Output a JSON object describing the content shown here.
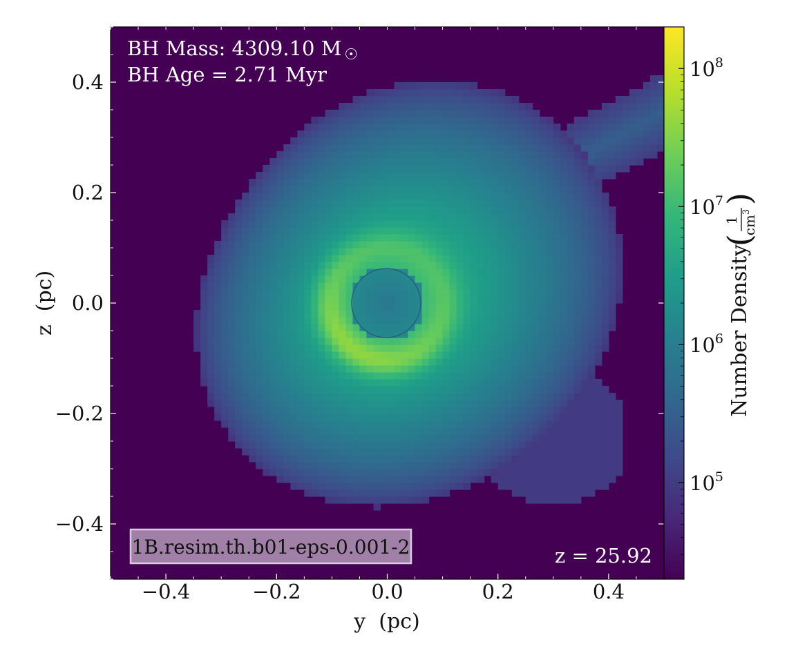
{
  "chart_data": {
    "type": "heatmap",
    "title": "",
    "xlabel": "y  (pc)",
    "ylabel": "z  (pc)",
    "xlim": [
      -0.5,
      0.5
    ],
    "ylim": [
      -0.5,
      0.5
    ],
    "x_ticks": [
      -0.4,
      -0.2,
      0.0,
      0.2,
      0.4
    ],
    "x_tick_labels": [
      "−0.4",
      "−0.2",
      "0.0",
      "0.2",
      "0.4"
    ],
    "y_ticks": [
      0.4,
      0.2,
      0.0,
      -0.2,
      -0.4
    ],
    "y_tick_labels": [
      "0.4",
      "0.2",
      "0.0",
      "−0.2",
      "−0.4"
    ],
    "colorbar": {
      "label": "Number Density",
      "unit_numerator": "1",
      "unit_denominator": "cm",
      "unit_exponent": "3",
      "scale": "log",
      "range": [
        20000,
        200000000
      ],
      "colormap": "viridis",
      "ticks": [
        {
          "base": "10",
          "exp": "5",
          "value": 100000
        },
        {
          "base": "10",
          "exp": "6",
          "value": 1000000
        },
        {
          "base": "10",
          "exp": "7",
          "value": 10000000
        },
        {
          "base": "10",
          "exp": "8",
          "value": 100000000
        }
      ]
    },
    "annotations": {
      "bh_mass_text": "BH Mass: 4309.10 M",
      "bh_mass_symbol": "☉",
      "bh_age_text": "BH Age = 2.71 Myr",
      "simulation_name": "1B.resim.th.b01-eps-0.001-2",
      "redshift_text": "z = 25.92"
    },
    "background_density": 25000,
    "colors": {
      "viridis": [
        "#440154",
        "#482878",
        "#3e4a89",
        "#31688e",
        "#26828e",
        "#1f9e89",
        "#35b779",
        "#6ece58",
        "#b5de2b",
        "#fde725"
      ],
      "label_box_fill": "#a180a8",
      "label_box_border": "#d8cde0"
    }
  }
}
